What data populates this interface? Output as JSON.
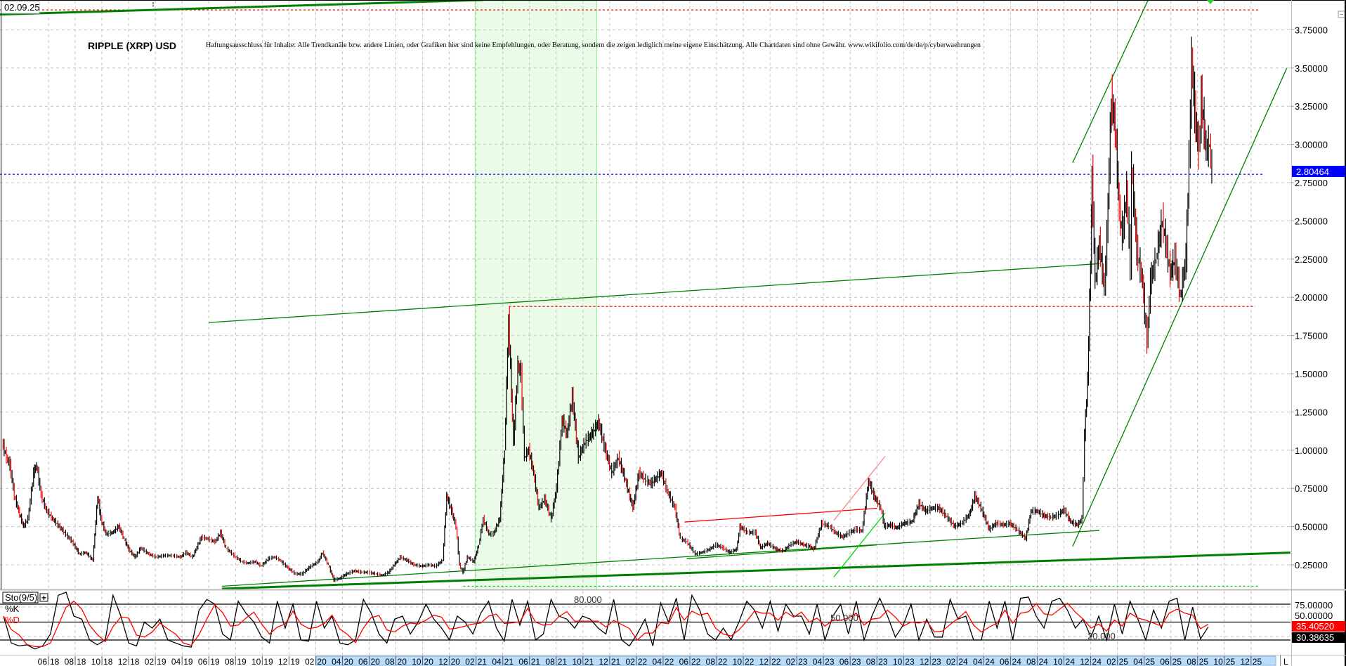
{
  "header": {
    "date_stamp": "02.09.25",
    "title": "RIPPLE (XRP) USD",
    "disclaimer": "Haftungsausschluss für Inhalte: Alle Trendkanäle bzw. andere Linien, oder Grafiken hier sind keine Empfehlungen, oder Beratung, sondern die zeigen lediglich meine eigene Einschätzung. Alle Chartdaten sind ohne Gewähr.  www.wikifolio.com/de/de/p/cyberwaehrungen"
  },
  "colors": {
    "up_bar": "#000000",
    "down_bar": "#ff0000",
    "trendline": "#008000",
    "highlight_zone": "#eafbe8",
    "last_price_box": "#0000ff",
    "stoch_k_box": "#ff0000",
    "stoch_d_box": "#000000",
    "date_axis_fill": "#b9dcfa"
  },
  "price_axis": {
    "ticks": [
      "0.25000",
      "0.50000",
      "0.75000",
      "1.00000",
      "1.25000",
      "1.50000",
      "1.75000",
      "2.00000",
      "2.25000",
      "2.50000",
      "2.75000",
      "3.00000",
      "3.25000",
      "3.50000",
      "3.75000"
    ],
    "last_price": "2.80464"
  },
  "indicator": {
    "name": "Sto(9/5)",
    "add_icon": "plus-icon",
    "k_label": "%K",
    "d_label": "%D",
    "axis_ticks": [
      "75.00000",
      "50.00000"
    ],
    "level_labels": [
      "80.000",
      "50.000",
      "20.000"
    ],
    "k_value": "35.40520",
    "d_value": "30.38635"
  },
  "date_axis": {
    "end_marker": "L"
  },
  "chart_data": {
    "type": "line",
    "title": "RIPPLE (XRP) USD",
    "xlabel": "",
    "ylabel": "",
    "ylim": [
      0.09,
      3.95
    ],
    "grid": true,
    "x_tick_labels": [
      "06 18",
      "08 18",
      "10 18",
      "12 18",
      "02 19",
      "04 19",
      "06 19",
      "08 19",
      "10 19",
      "12 19",
      "02 20",
      "04 20",
      "06 20",
      "08 20",
      "10 20",
      "12 20",
      "02 21",
      "04 21",
      "06 21",
      "08 21",
      "10 21",
      "12 21",
      "02 22",
      "04 22",
      "06 22",
      "08 22",
      "10 22",
      "12 22",
      "02 23",
      "04 23",
      "06 23",
      "08 23",
      "10 23",
      "12 23",
      "02 24",
      "04 24",
      "06 24",
      "08 24",
      "10 24",
      "12 24",
      "02 25",
      "04 25",
      "06 25",
      "08 25",
      "10 25",
      "12 25"
    ],
    "price_series": [
      [
        "2018-02-15",
        1.05
      ],
      [
        "2018-02-25",
        0.95
      ],
      [
        "2018-03-05",
        0.9
      ],
      [
        "2018-03-15",
        0.7
      ],
      [
        "2018-03-25",
        0.6
      ],
      [
        "2018-04-05",
        0.5
      ],
      [
        "2018-04-15",
        0.55
      ],
      [
        "2018-04-28",
        0.85
      ],
      [
        "2018-05-05",
        0.9
      ],
      [
        "2018-05-15",
        0.7
      ],
      [
        "2018-05-28",
        0.6
      ],
      [
        "2018-06-10",
        0.55
      ],
      [
        "2018-06-25",
        0.5
      ],
      [
        "2018-07-10",
        0.45
      ],
      [
        "2018-07-25",
        0.4
      ],
      [
        "2018-08-10",
        0.32
      ],
      [
        "2018-08-25",
        0.33
      ],
      [
        "2018-09-10",
        0.28
      ],
      [
        "2018-09-21",
        0.7
      ],
      [
        "2018-09-28",
        0.55
      ],
      [
        "2018-10-10",
        0.45
      ],
      [
        "2018-10-25",
        0.46
      ],
      [
        "2018-11-08",
        0.5
      ],
      [
        "2018-11-20",
        0.42
      ],
      [
        "2018-12-01",
        0.35
      ],
      [
        "2018-12-15",
        0.3
      ],
      [
        "2018-12-28",
        0.36
      ],
      [
        "2019-01-15",
        0.32
      ],
      [
        "2019-02-01",
        0.3
      ],
      [
        "2019-02-20",
        0.31
      ],
      [
        "2019-03-10",
        0.31
      ],
      [
        "2019-03-28",
        0.3
      ],
      [
        "2019-04-10",
        0.33
      ],
      [
        "2019-04-25",
        0.3
      ],
      [
        "2019-05-15",
        0.43
      ],
      [
        "2019-05-28",
        0.42
      ],
      [
        "2019-06-15",
        0.4
      ],
      [
        "2019-06-28",
        0.46
      ],
      [
        "2019-07-10",
        0.36
      ],
      [
        "2019-07-28",
        0.31
      ],
      [
        "2019-08-15",
        0.27
      ],
      [
        "2019-08-28",
        0.26
      ],
      [
        "2019-09-15",
        0.27
      ],
      [
        "2019-09-28",
        0.24
      ],
      [
        "2019-10-15",
        0.29
      ],
      [
        "2019-10-28",
        0.3
      ],
      [
        "2019-11-10",
        0.28
      ],
      [
        "2019-11-28",
        0.23
      ],
      [
        "2019-12-15",
        0.19
      ],
      [
        "2019-12-31",
        0.19
      ],
      [
        "2020-01-15",
        0.23
      ],
      [
        "2020-02-05",
        0.27
      ],
      [
        "2020-02-15",
        0.33
      ],
      [
        "2020-02-28",
        0.25
      ],
      [
        "2020-03-12",
        0.15
      ],
      [
        "2020-03-25",
        0.16
      ],
      [
        "2020-04-10",
        0.19
      ],
      [
        "2020-04-28",
        0.21
      ],
      [
        "2020-05-15",
        0.2
      ],
      [
        "2020-05-30",
        0.2
      ],
      [
        "2020-06-15",
        0.19
      ],
      [
        "2020-06-30",
        0.18
      ],
      [
        "2020-07-15",
        0.2
      ],
      [
        "2020-07-25",
        0.24
      ],
      [
        "2020-08-10",
        0.3
      ],
      [
        "2020-08-25",
        0.28
      ],
      [
        "2020-09-10",
        0.25
      ],
      [
        "2020-09-28",
        0.24
      ],
      [
        "2020-10-15",
        0.25
      ],
      [
        "2020-10-30",
        0.24
      ],
      [
        "2020-11-15",
        0.28
      ],
      [
        "2020-11-24",
        0.7
      ],
      [
        "2020-12-05",
        0.6
      ],
      [
        "2020-12-15",
        0.5
      ],
      [
        "2020-12-23",
        0.25
      ],
      [
        "2020-12-31",
        0.2
      ],
      [
        "2021-01-10",
        0.3
      ],
      [
        "2021-01-25",
        0.27
      ],
      [
        "2021-02-05",
        0.38
      ],
      [
        "2021-02-15",
        0.55
      ],
      [
        "2021-02-28",
        0.45
      ],
      [
        "2021-03-10",
        0.45
      ],
      [
        "2021-03-25",
        0.55
      ],
      [
        "2021-04-05",
        1.0
      ],
      [
        "2021-04-14",
        1.85
      ],
      [
        "2021-04-25",
        1.05
      ],
      [
        "2021-05-05",
        1.55
      ],
      [
        "2021-05-12",
        1.5
      ],
      [
        "2021-05-20",
        0.95
      ],
      [
        "2021-05-30",
        1.0
      ],
      [
        "2021-06-10",
        0.85
      ],
      [
        "2021-06-22",
        0.62
      ],
      [
        "2021-07-05",
        0.68
      ],
      [
        "2021-07-20",
        0.55
      ],
      [
        "2021-08-01",
        0.75
      ],
      [
        "2021-08-14",
        1.2
      ],
      [
        "2021-08-25",
        1.1
      ],
      [
        "2021-09-06",
        1.35
      ],
      [
        "2021-09-20",
        0.95
      ],
      [
        "2021-10-05",
        1.05
      ],
      [
        "2021-10-20",
        1.1
      ],
      [
        "2021-11-05",
        1.18
      ],
      [
        "2021-11-20",
        1.0
      ],
      [
        "2021-12-05",
        0.85
      ],
      [
        "2021-12-20",
        0.95
      ],
      [
        "2022-01-05",
        0.8
      ],
      [
        "2022-01-22",
        0.62
      ],
      [
        "2022-02-05",
        0.85
      ],
      [
        "2022-02-20",
        0.8
      ],
      [
        "2022-03-05",
        0.78
      ],
      [
        "2022-03-28",
        0.85
      ],
      [
        "2022-04-10",
        0.73
      ],
      [
        "2022-04-28",
        0.62
      ],
      [
        "2022-05-10",
        0.42
      ],
      [
        "2022-05-25",
        0.4
      ],
      [
        "2022-06-13",
        0.32
      ],
      [
        "2022-06-28",
        0.33
      ],
      [
        "2022-07-15",
        0.35
      ],
      [
        "2022-07-30",
        0.38
      ],
      [
        "2022-08-15",
        0.36
      ],
      [
        "2022-08-30",
        0.33
      ],
      [
        "2022-09-15",
        0.35
      ],
      [
        "2022-09-23",
        0.5
      ],
      [
        "2022-10-10",
        0.46
      ],
      [
        "2022-10-28",
        0.46
      ],
      [
        "2022-11-09",
        0.36
      ],
      [
        "2022-11-25",
        0.39
      ],
      [
        "2022-12-15",
        0.35
      ],
      [
        "2022-12-31",
        0.34
      ],
      [
        "2023-01-15",
        0.38
      ],
      [
        "2023-01-30",
        0.4
      ],
      [
        "2023-02-15",
        0.38
      ],
      [
        "2023-03-01",
        0.37
      ],
      [
        "2023-03-10",
        0.35
      ],
      [
        "2023-03-28",
        0.52
      ],
      [
        "2023-04-15",
        0.5
      ],
      [
        "2023-04-28",
        0.46
      ],
      [
        "2023-05-15",
        0.43
      ],
      [
        "2023-05-30",
        0.46
      ],
      [
        "2023-06-15",
        0.48
      ],
      [
        "2023-06-28",
        0.47
      ],
      [
        "2023-07-13",
        0.8
      ],
      [
        "2023-07-25",
        0.7
      ],
      [
        "2023-08-10",
        0.62
      ],
      [
        "2023-08-18",
        0.5
      ],
      [
        "2023-09-01",
        0.51
      ],
      [
        "2023-09-15",
        0.49
      ],
      [
        "2023-10-01",
        0.52
      ],
      [
        "2023-10-20",
        0.53
      ],
      [
        "2023-11-05",
        0.65
      ],
      [
        "2023-11-20",
        0.6
      ],
      [
        "2023-12-05",
        0.62
      ],
      [
        "2023-12-20",
        0.62
      ],
      [
        "2024-01-05",
        0.57
      ],
      [
        "2024-01-25",
        0.5
      ],
      [
        "2024-02-10",
        0.52
      ],
      [
        "2024-02-28",
        0.58
      ],
      [
        "2024-03-11",
        0.7
      ],
      [
        "2024-03-25",
        0.62
      ],
      [
        "2024-04-13",
        0.48
      ],
      [
        "2024-04-28",
        0.52
      ],
      [
        "2024-05-15",
        0.51
      ],
      [
        "2024-05-30",
        0.52
      ],
      [
        "2024-06-15",
        0.48
      ],
      [
        "2024-07-05",
        0.42
      ],
      [
        "2024-07-17",
        0.6
      ],
      [
        "2024-07-31",
        0.6
      ],
      [
        "2024-08-15",
        0.57
      ],
      [
        "2024-08-31",
        0.56
      ],
      [
        "2024-09-15",
        0.57
      ],
      [
        "2024-09-30",
        0.61
      ],
      [
        "2024-10-15",
        0.53
      ],
      [
        "2024-10-31",
        0.51
      ],
      [
        "2024-11-10",
        0.55
      ],
      [
        "2024-11-16",
        1.1
      ],
      [
        "2024-11-23",
        1.45
      ],
      [
        "2024-12-02",
        2.5
      ],
      [
        "2024-12-03",
        2.8
      ],
      [
        "2024-12-10",
        2.1
      ],
      [
        "2024-12-20",
        2.35
      ],
      [
        "2024-12-31",
        2.05
      ],
      [
        "2025-01-06",
        2.4
      ],
      [
        "2025-01-16",
        3.3
      ],
      [
        "2025-01-25",
        3.1
      ],
      [
        "2025-02-03",
        2.55
      ],
      [
        "2025-02-10",
        2.4
      ],
      [
        "2025-02-20",
        2.7
      ],
      [
        "2025-02-28",
        2.2
      ],
      [
        "2025-03-03",
        2.85
      ],
      [
        "2025-03-15",
        2.3
      ],
      [
        "2025-03-28",
        2.1
      ],
      [
        "2025-04-07",
        1.7
      ],
      [
        "2025-04-15",
        2.1
      ],
      [
        "2025-04-28",
        2.25
      ],
      [
        "2025-05-12",
        2.5
      ],
      [
        "2025-05-20",
        2.35
      ],
      [
        "2025-05-30",
        2.15
      ],
      [
        "2025-06-10",
        2.25
      ],
      [
        "2025-06-22",
        2.0
      ],
      [
        "2025-07-05",
        2.25
      ],
      [
        "2025-07-12",
        2.9
      ],
      [
        "2025-07-18",
        3.55
      ],
      [
        "2025-07-25",
        3.2
      ],
      [
        "2025-08-03",
        2.95
      ],
      [
        "2025-08-09",
        3.3
      ],
      [
        "2025-08-20",
        2.95
      ],
      [
        "2025-08-28",
        3.0
      ],
      [
        "2025-09-02",
        2.8
      ]
    ],
    "horizontal_lines": [
      {
        "price": 3.88,
        "from": "2018-02-10",
        "to": "2025-12-20",
        "color": "#ff0000",
        "style": "dotted"
      },
      {
        "price": 1.94,
        "from": "2021-04-15",
        "to": "2025-12-10",
        "color": "#ff0000",
        "style": "dotted"
      },
      {
        "price": 2.80464,
        "from": "2018-02-10",
        "to": "2025-12-31",
        "color": "#0000ff",
        "style": "dotted"
      },
      {
        "price": 0.11,
        "from": "2021-01-01",
        "to": "2025-12-20",
        "color": "#00cc00",
        "style": "dotted"
      }
    ],
    "trendlines": [
      {
        "from": [
          "2018-02-10",
          3.85
        ],
        "to": [
          "2021-02-15",
          3.945
        ],
        "color": "#008000",
        "weight": "thick"
      },
      {
        "from": [
          "2019-07-01",
          0.094
        ],
        "to": [
          "2026-02-28",
          0.33
        ],
        "color": "#008000",
        "weight": "thick"
      },
      {
        "from": [
          "2019-06-01",
          1.835
        ],
        "to": [
          "2024-12-20",
          2.22
        ],
        "color": "#008000",
        "weight": "thin"
      },
      {
        "from": [
          "2019-07-01",
          0.11
        ],
        "to": [
          "2024-12-20",
          0.475
        ],
        "color": "#008000",
        "weight": "thin"
      },
      {
        "from": [
          "2022-05-25",
          0.29
        ],
        "to": [
          "2023-08-01",
          0.38
        ],
        "color": "#008000",
        "weight": "thin"
      },
      {
        "from": [
          "2023-04-25",
          0.17
        ],
        "to": [
          "2023-08-20",
          0.59
        ],
        "color": "#00dd00",
        "weight": "thin"
      },
      {
        "from": [
          "2022-05-20",
          0.53
        ],
        "to": [
          "2023-08-01",
          0.62
        ],
        "color": "#ff0000",
        "weight": "thin"
      },
      {
        "from": [
          "2023-04-25",
          0.54
        ],
        "to": [
          "2023-08-20",
          0.96
        ],
        "color": "#ff8080",
        "weight": "thin"
      },
      {
        "from": [
          "2024-10-20",
          2.88
        ],
        "to": [
          "2025-04-10",
          3.945
        ],
        "color": "#008000",
        "weight": "thin"
      },
      {
        "from": [
          "2024-10-20",
          0.37
        ],
        "to": [
          "2026-02-20",
          3.5
        ],
        "color": "#008000",
        "weight": "thin"
      }
    ],
    "highlight_zone": {
      "from": "2021-01-28",
      "to": "2021-11-01"
    },
    "stochastic": {
      "levels": [
        80,
        50,
        20
      ],
      "k_values": [
        60,
        15,
        10,
        12,
        5,
        10,
        30,
        95,
        100,
        60,
        55,
        20,
        12,
        20,
        95,
        60,
        15,
        10,
        50,
        40,
        55,
        20,
        15,
        10,
        8,
        70,
        88,
        80,
        30,
        20,
        85,
        65,
        50,
        25,
        15,
        85,
        40,
        80,
        20,
        18,
        85,
        40,
        60,
        15,
        12,
        20,
        88,
        65,
        30,
        15,
        55,
        60,
        30,
        50,
        80,
        55,
        40,
        20,
        60,
        50,
        30,
        65,
        85,
        40,
        18,
        88,
        45,
        85,
        20,
        30,
        88,
        60,
        55,
        40,
        60,
        55,
        40,
        30,
        88,
        20,
        10,
        30,
        55,
        10,
        82,
        50,
        90,
        20,
        95,
        70,
        30,
        20,
        40,
        20,
        50,
        85,
        70,
        40,
        85,
        35,
        80,
        60,
        60,
        30,
        80,
        20,
        60,
        80,
        30,
        85,
        20,
        60,
        90,
        60,
        25,
        45,
        80,
        20,
        55,
        25,
        25,
        88,
        55,
        60,
        20,
        20,
        85,
        40,
        85,
        20,
        90,
        92,
        60,
        40,
        85,
        90,
        70,
        40,
        55,
        25,
        60,
        20,
        80,
        30,
        85,
        55,
        20,
        70,
        40,
        85,
        90,
        20,
        75,
        22,
        42
      ]
    }
  }
}
